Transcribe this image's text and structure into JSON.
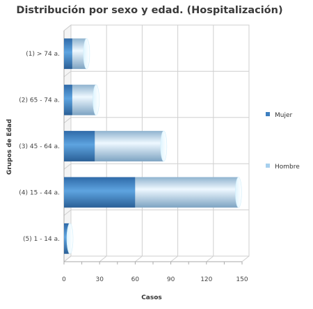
{
  "chart_data": {
    "type": "bar",
    "orientation": "horizontal",
    "stacked": true,
    "title": "Distribución por sexo y edad. (Hospitalización)",
    "xlabel": "Casos",
    "ylabel": "Grupos de Edad",
    "categories": [
      "(1) > 74 a.",
      "(2) 65 - 74 a.",
      "(3) 45 - 64 a.",
      "(4) 15 - 44 a.",
      "(5) 1 - 14 a."
    ],
    "series": [
      {
        "name": "Mujer",
        "values": [
          7,
          7,
          26,
          60,
          4
        ]
      },
      {
        "name": "Hombre",
        "values": [
          12,
          20,
          58,
          87,
          1
        ]
      }
    ],
    "xlim": [
      0,
      150
    ],
    "xticks": [
      "0",
      "30",
      "60",
      "90",
      "120",
      "150"
    ],
    "grid": true,
    "legend_position": "right"
  },
  "colors": {
    "mujer": "#3d7fc0",
    "hombre": "#a7d0ee",
    "grid": "#cfcfcf"
  }
}
